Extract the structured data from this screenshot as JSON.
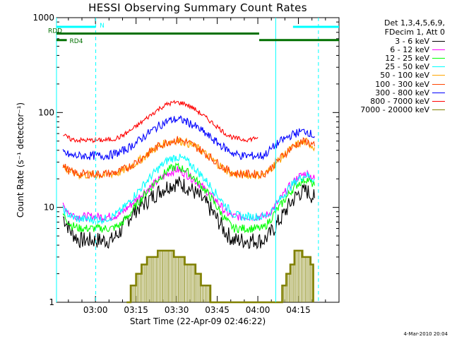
{
  "chart_data": {
    "type": "line",
    "title": "HESSI Observing Summary Count Rates",
    "xlabel": "Start Time (22-Apr-09 02:46:22)",
    "ylabel": "Count Rate (s⁻¹ detector⁻¹)",
    "y_scale": "log",
    "ylim": [
      1,
      1000
    ],
    "xlim_minutes": [
      -14.4,
      90
    ],
    "x_ticks": [
      {
        "minute": 0,
        "label": "03:00"
      },
      {
        "minute": 15,
        "label": "03:15"
      },
      {
        "minute": 30,
        "label": "03:30"
      },
      {
        "minute": 45,
        "label": "03:45"
      },
      {
        "minute": 60,
        "label": "04:00"
      },
      {
        "minute": 75,
        "label": "04:15"
      }
    ],
    "y_ticks": [
      {
        "value": 1,
        "label": "1"
      },
      {
        "value": 10,
        "label": "10"
      },
      {
        "value": 100,
        "label": "100"
      },
      {
        "value": 1000,
        "label": "1000"
      }
    ],
    "legend_header": [
      "Det 1,3,4,5,6,9,",
      "FDecim 1, Att 0"
    ],
    "legend_position": "right",
    "series": [
      {
        "name": "3 - 6 keV",
        "color": "#000000",
        "x": [
          -12,
          -9,
          -6,
          -3,
          0,
          3,
          6,
          9,
          12,
          15,
          18,
          21,
          24,
          27,
          30,
          33,
          36,
          39,
          42,
          45,
          48,
          51,
          54,
          57,
          60,
          62,
          64,
          66,
          69,
          72,
          75,
          78,
          81
        ],
        "y": [
          8,
          5.5,
          4.5,
          4.5,
          4.5,
          4.5,
          4.5,
          5.5,
          7.5,
          9.5,
          11,
          13,
          15,
          17,
          18,
          17,
          15,
          12.5,
          10,
          7.5,
          5.5,
          4.5,
          4.5,
          4.5,
          4.5,
          4.5,
          5,
          6,
          8,
          11,
          14,
          15,
          12.5
        ]
      },
      {
        "name": "6 - 12 keV",
        "color": "#ff00ff",
        "x": [
          -12,
          -9,
          -6,
          -3,
          0,
          3,
          6,
          9,
          12,
          15,
          18,
          21,
          24,
          27,
          30,
          33,
          36,
          39,
          42,
          45,
          48,
          51,
          54,
          57,
          60,
          62,
          64,
          66,
          69,
          72,
          75,
          78,
          81
        ],
        "y": [
          10.5,
          8.5,
          8,
          8,
          8,
          8,
          8,
          8.5,
          10,
          12,
          14.5,
          17,
          20,
          23,
          25,
          23,
          20,
          17,
          14,
          11.5,
          9,
          8,
          8,
          8,
          8,
          8,
          8.5,
          10,
          13,
          17,
          21,
          23,
          20
        ]
      },
      {
        "name": "12 - 25 keV",
        "color": "#00ff00",
        "x": [
          -12,
          -9,
          -6,
          -3,
          0,
          3,
          6,
          9,
          12,
          15,
          18,
          21,
          24,
          27,
          30,
          33,
          36,
          39,
          42,
          45,
          48,
          51,
          54,
          57,
          60,
          62,
          64,
          66,
          69,
          72,
          75,
          78,
          81
        ],
        "y": [
          8.5,
          6.5,
          6,
          6,
          6,
          6,
          6,
          6.5,
          8,
          10.5,
          13.5,
          17,
          21,
          25,
          27,
          25,
          21,
          17,
          13.5,
          10,
          7.5,
          6,
          6,
          6,
          6,
          6,
          7,
          8.5,
          11,
          14.5,
          18,
          20,
          17
        ]
      },
      {
        "name": "25 - 50 keV",
        "color": "#00ffff",
        "x": [
          -12,
          -9,
          -6,
          -3,
          0,
          3,
          6,
          9,
          12,
          15,
          18,
          21,
          24,
          27,
          30,
          33,
          36,
          39,
          42,
          45,
          48,
          51,
          54,
          57,
          60,
          62,
          64,
          66,
          69,
          72,
          75,
          78,
          81
        ],
        "y": [
          9.5,
          8,
          7.5,
          7.5,
          7.5,
          7.5,
          8,
          9,
          11,
          14,
          17.5,
          22,
          27,
          32,
          34,
          32,
          27,
          22,
          17.5,
          13.5,
          10.5,
          8.5,
          8,
          8,
          8,
          8,
          8.5,
          10,
          13,
          16.5,
          20,
          22,
          19.5
        ]
      },
      {
        "name": "50 - 100 keV",
        "color": "#ffa500",
        "x": [
          -12,
          -9,
          -6,
          -3,
          0,
          3,
          6,
          9,
          12,
          15,
          18,
          21,
          24,
          27,
          30,
          33,
          36,
          39,
          42,
          45,
          48,
          51,
          54,
          57,
          60,
          62,
          64,
          66,
          69,
          72,
          75,
          78,
          81
        ],
        "y": [
          27,
          23.5,
          22,
          22,
          22,
          22,
          22.5,
          23.5,
          26,
          29.5,
          34,
          40,
          45,
          49,
          51,
          49,
          45,
          40,
          34,
          29,
          25,
          22.5,
          22,
          22,
          22,
          22,
          24,
          28,
          34,
          41,
          47,
          49,
          43
        ]
      },
      {
        "name": "100 - 300 keV",
        "color": "#ff4500",
        "x": [
          -12,
          -9,
          -6,
          -3,
          0,
          3,
          6,
          9,
          12,
          15,
          18,
          21,
          24,
          27,
          30,
          33,
          36,
          39,
          42,
          45,
          48,
          51,
          54,
          57,
          60,
          62,
          64,
          66,
          69,
          72,
          75,
          78,
          81
        ],
        "y": [
          27.5,
          23.5,
          22.5,
          22.5,
          22.5,
          22.5,
          23,
          24,
          26.5,
          30,
          34.5,
          40,
          45.5,
          49.5,
          51.5,
          49.5,
          45.5,
          40,
          34.5,
          29.5,
          25.5,
          23,
          22.5,
          22.5,
          22.5,
          22.5,
          24.5,
          28.5,
          34.5,
          41.5,
          47.5,
          50,
          44
        ]
      },
      {
        "name": "300 - 800 keV",
        "color": "#0000ff",
        "x": [
          -12,
          -9,
          -6,
          -3,
          0,
          3,
          6,
          9,
          12,
          15,
          18,
          21,
          24,
          27,
          30,
          33,
          36,
          39,
          42,
          45,
          48,
          51,
          54,
          57,
          60,
          62,
          64,
          66,
          69,
          72,
          75,
          78,
          81
        ],
        "y": [
          38,
          35,
          35,
          35,
          35,
          35,
          36,
          38,
          42,
          48,
          56,
          65,
          74,
          82,
          85,
          82,
          74,
          65,
          56,
          48,
          42,
          37,
          35,
          35,
          35,
          35,
          39,
          44,
          51,
          57,
          62,
          64,
          56
        ]
      },
      {
        "name": "800 - 7000 keV",
        "color": "#ff0000",
        "x": [
          -12,
          -9,
          -6,
          -3,
          0,
          3,
          6,
          9,
          12,
          15,
          18,
          21,
          24,
          27,
          30,
          33,
          36,
          39,
          42,
          45,
          48,
          51,
          54,
          57,
          60
        ],
        "y": [
          58,
          52,
          51,
          51,
          51,
          51,
          52,
          55,
          62,
          71,
          83,
          97,
          112,
          124,
          128,
          124,
          112,
          97,
          83,
          71,
          60,
          54,
          52,
          52,
          55
        ]
      },
      {
        "name": "7000 - 20000 keV",
        "color": "#808000",
        "x": [
          11.5,
          13,
          15,
          17,
          19,
          21,
          23,
          25,
          27,
          29,
          31,
          33,
          35,
          37,
          39,
          41,
          42.5,
          69,
          70.5,
          72,
          73.5,
          75,
          76.5,
          78,
          79.5,
          80.5
        ],
        "y": [
          1,
          1.5,
          2.0,
          2.5,
          3.0,
          3.0,
          3.5,
          3.5,
          3.5,
          3.0,
          3.0,
          2.5,
          2.5,
          2.0,
          1.5,
          1.5,
          1,
          1.5,
          2.0,
          2.5,
          3.5,
          3.5,
          3.0,
          3.0,
          2.5,
          1
        ]
      }
    ],
    "annotations": {
      "markers": [
        {
          "label": "N",
          "color": "#00ffff",
          "y": 800,
          "segments": [
            [
              -14.4,
              0
            ],
            [
              73,
              90
            ]
          ]
        },
        {
          "label": "RDD",
          "color": "#007000",
          "y": 680,
          "segments": [
            [
              -14.4,
              60.5
            ]
          ]
        },
        {
          "label": "RD4",
          "color": "#007000",
          "y": 580,
          "segments": [
            [
              -14.4,
              -10.6
            ],
            [
              60.5,
              90
            ]
          ]
        }
      ],
      "vertical_solid_cyan": [
        -14.4,
        66.6
      ],
      "vertical_dashed_cyan": [
        0.1,
        82.4
      ]
    }
  },
  "footer_date": "4-Mar-2010 20:04"
}
